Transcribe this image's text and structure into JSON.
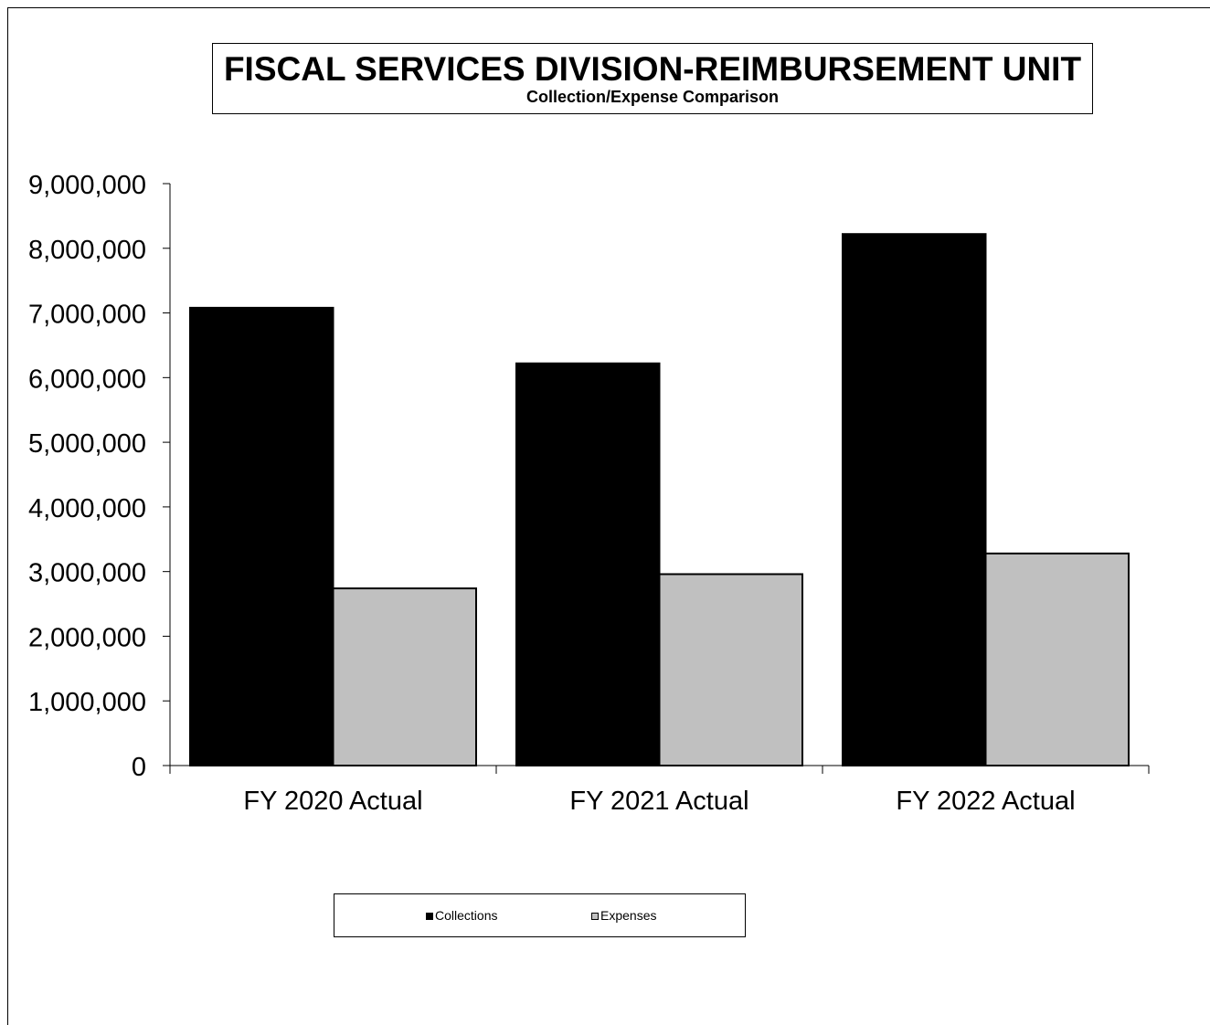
{
  "chart_data": {
    "type": "bar",
    "title": "FISCAL SERVICES DIVISION-REIMBURSEMENT UNIT",
    "subtitle": "Collection/Expense Comparison",
    "categories": [
      "FY 2020 Actual",
      "FY 2021 Actual",
      "FY 2022 Actual"
    ],
    "series": [
      {
        "name": "Collections",
        "color": "#000000",
        "values": [
          7080000,
          6220000,
          8220000
        ]
      },
      {
        "name": "Expenses",
        "color": "#c0c0c0",
        "values": [
          2740000,
          2960000,
          3280000
        ]
      }
    ],
    "ylim": [
      0,
      9000000
    ],
    "yticks": [
      "0",
      "1,000,000",
      "2,000,000",
      "3,000,000",
      "4,000,000",
      "5,000,000",
      "6,000,000",
      "7,000,000",
      "8,000,000",
      "9,000,000"
    ],
    "grid": false,
    "legend_position": "bottom"
  }
}
